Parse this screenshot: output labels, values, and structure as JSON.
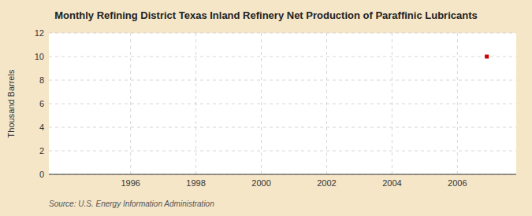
{
  "chart_data": {
    "type": "scatter",
    "title": "Monthly Refining District Texas Inland Refinery Net Production of Paraffinic Lubricants",
    "y_label": "Thousand Barrels",
    "source": "Source: U.S. Energy Information Administration",
    "x": [
      2006.9
    ],
    "values": [
      10
    ],
    "color": "#cc0000",
    "marker": "square",
    "xlim": [
      1993.5,
      2007.8
    ],
    "xticks": [
      1996,
      1998,
      2000,
      2002,
      2004,
      2006
    ],
    "ylim": [
      0,
      12
    ],
    "yticks": [
      0,
      2,
      4,
      6,
      8,
      10,
      12
    ],
    "grid": true
  }
}
